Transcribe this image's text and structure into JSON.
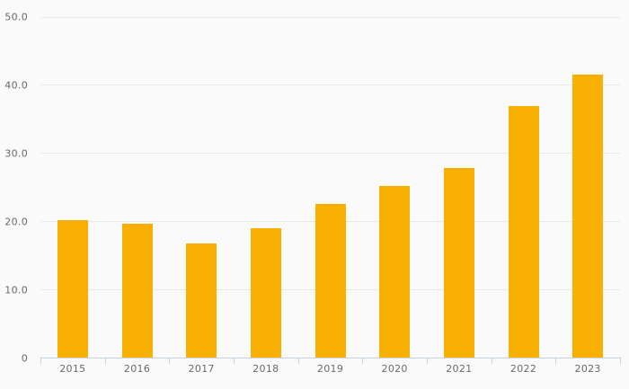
{
  "chart_data": {
    "type": "bar",
    "categories": [
      "2015",
      "2016",
      "2017",
      "2018",
      "2019",
      "2020",
      "2021",
      "2022",
      "2023"
    ],
    "values": [
      20.2,
      19.7,
      16.8,
      19.0,
      22.5,
      25.2,
      27.8,
      36.9,
      41.5
    ],
    "title": "",
    "xlabel": "",
    "ylabel": "",
    "ylim": [
      0,
      50
    ],
    "y_ticks": [
      0,
      10,
      20,
      30,
      40,
      50
    ],
    "y_tick_labels": [
      "0",
      "10.0",
      "20.0",
      "30.0",
      "40.0",
      "50.0"
    ],
    "grid": "horizontal",
    "legend": "none",
    "colors": {
      "bar": "#F9B005",
      "background": "#FAFAFA",
      "gridline": "#E8E8E8",
      "axis_line": "#C8D2E6",
      "tick_text": "#66696E"
    }
  }
}
